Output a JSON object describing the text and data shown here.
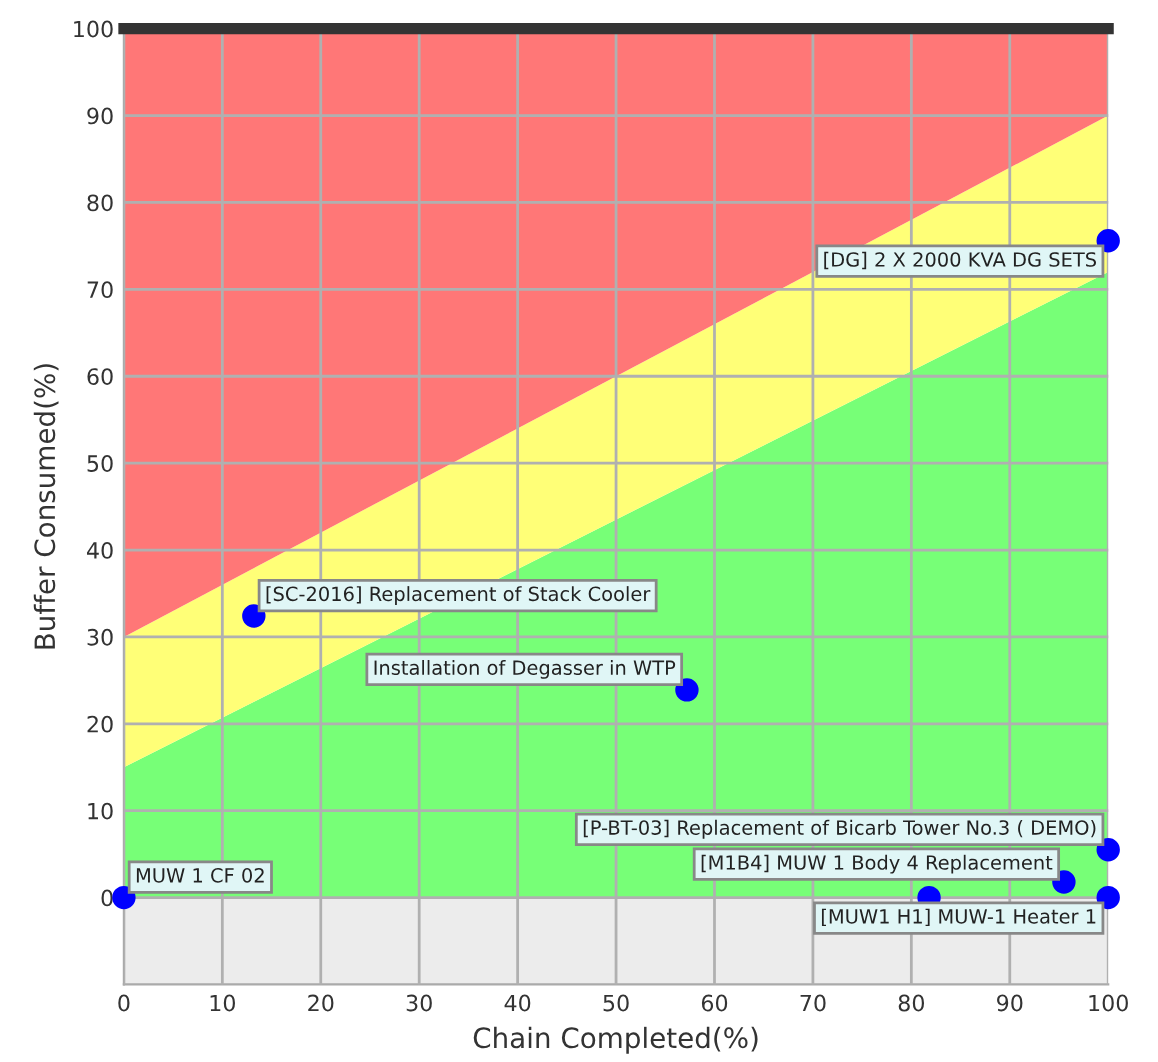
{
  "chart_data": {
    "type": "scatter",
    "xlabel": "Chain Completed(%)",
    "ylabel": "Buffer Consumed(%)",
    "xlim": [
      0,
      100
    ],
    "ylim": [
      -10,
      100
    ],
    "xticks": [
      0,
      10,
      20,
      30,
      40,
      50,
      60,
      70,
      80,
      90,
      100
    ],
    "yticks": [
      0,
      10,
      20,
      30,
      40,
      50,
      60,
      70,
      80,
      90,
      100
    ],
    "grid": true,
    "legend": false,
    "bands": [
      {
        "axis": "y",
        "from": -10,
        "to": 0,
        "color": "#ececec"
      }
    ],
    "series": [
      {
        "type": "area",
        "color": "#77ff77",
        "x": [
          0,
          100
        ],
        "values": [
          15,
          72
        ]
      },
      {
        "type": "area",
        "color": "#ffff77",
        "x": [
          0,
          100
        ],
        "values": [
          30,
          90
        ]
      },
      {
        "type": "area",
        "color": "#ff7777",
        "x": [
          0,
          100
        ],
        "values": [
          100,
          100
        ]
      },
      {
        "marker": "circle",
        "color": "#0000ff",
        "x": [
          0,
          13.2,
          57.2,
          100,
          100,
          95.5,
          81.8,
          100
        ],
        "values": [
          0,
          32.4,
          23.9,
          75.6,
          5.5,
          1.8,
          0,
          0
        ]
      }
    ],
    "annotations": [
      {
        "text": "MUW 1 CF 02",
        "x": 0,
        "y": 0
      },
      {
        "text": "[SC-2016] Replacement of Stack Cooler",
        "x": 13.2,
        "y": 32.4
      },
      {
        "text": "Installation of Degasser in WTP",
        "x": 57.2,
        "y": 23.9
      },
      {
        "text": "[DG] 2 X 2000 KVA DG SETS",
        "x": 100,
        "y": 75.6
      },
      {
        "text": "[P-BT-03] Replacement of Bicarb Tower No.3 ( DEMO)",
        "x": 100,
        "y": 5.5
      },
      {
        "text": "[M1B4] MUW 1 Body 4 Replacement",
        "x": 95.5,
        "y": 1.8
      },
      {
        "text": "[MUW1 H1] MUW-1 Heater 1",
        "x": 100,
        "y": 0
      }
    ]
  }
}
